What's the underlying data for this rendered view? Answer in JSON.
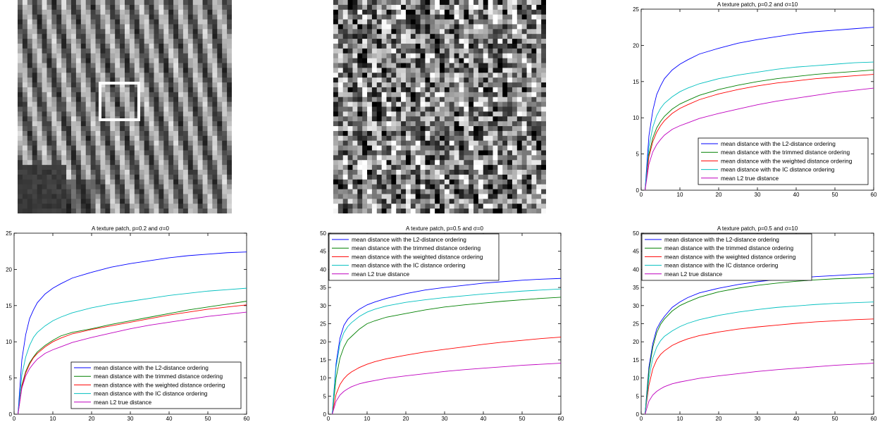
{
  "images": [
    {
      "kind": "texture-patch",
      "seed": 7,
      "highlight_box": true
    },
    {
      "kind": "noisy-patch",
      "seed": 13,
      "highlight_box": false
    }
  ],
  "series_colors": [
    "#0000ff",
    "#008000",
    "#ff0000",
    "#00bfbf",
    "#bf00bf"
  ],
  "chart_data": [
    {
      "type": "line",
      "title": "A texture patch, p=0.2 and σ=10",
      "xlim": [
        0,
        60
      ],
      "ylim": [
        0,
        25
      ],
      "xticks": [
        0,
        10,
        20,
        30,
        40,
        50,
        60
      ],
      "yticks": [
        0,
        5,
        10,
        15,
        20,
        25
      ],
      "legend_position": "lower-right",
      "x": [
        1,
        2,
        3,
        4,
        5,
        6,
        8,
        10,
        12,
        15,
        20,
        25,
        30,
        35,
        40,
        45,
        50,
        55,
        60
      ],
      "series": [
        {
          "name": "mean distance with the L2-distance ordering",
          "values": [
            0,
            7.5,
            11,
            13.2,
            14.4,
            15.4,
            16.6,
            17.4,
            18.0,
            18.8,
            19.6,
            20.3,
            20.8,
            21.2,
            21.6,
            21.9,
            22.1,
            22.3,
            22.5
          ]
        },
        {
          "name": "mean distance with the trimmed distance ordering",
          "values": [
            0,
            5.0,
            7.2,
            8.6,
            9.5,
            10.2,
            11.2,
            11.9,
            12.4,
            13.1,
            13.9,
            14.5,
            15.0,
            15.4,
            15.7,
            16.0,
            16.2,
            16.4,
            16.6
          ]
        },
        {
          "name": "mean distance with the weighted distance ordering",
          "values": [
            0,
            4.6,
            6.7,
            8.0,
            8.9,
            9.6,
            10.6,
            11.3,
            11.8,
            12.5,
            13.3,
            13.9,
            14.4,
            14.8,
            15.1,
            15.4,
            15.6,
            15.8,
            16.0
          ]
        },
        {
          "name": "mean distance with the IC distance ordering",
          "values": [
            0,
            6.0,
            8.7,
            10.3,
            11.3,
            12.0,
            12.9,
            13.6,
            14.1,
            14.7,
            15.4,
            15.9,
            16.3,
            16.7,
            17.0,
            17.2,
            17.4,
            17.6,
            17.7
          ]
        },
        {
          "name": "mean L2 true distance",
          "values": [
            0,
            3.6,
            5.3,
            6.3,
            7.0,
            7.6,
            8.4,
            8.9,
            9.3,
            9.9,
            10.6,
            11.2,
            11.8,
            12.3,
            12.7,
            13.1,
            13.5,
            13.8,
            14.1
          ]
        }
      ]
    },
    {
      "type": "line",
      "title": "A texture patch, p=0.2 and σ=0",
      "xlim": [
        0,
        60
      ],
      "ylim": [
        0,
        25
      ],
      "xticks": [
        0,
        10,
        20,
        30,
        40,
        50,
        60
      ],
      "yticks": [
        0,
        5,
        10,
        15,
        20,
        25
      ],
      "legend_position": "lower-right",
      "x": [
        1,
        2,
        3,
        4,
        5,
        6,
        8,
        10,
        12,
        15,
        20,
        25,
        30,
        35,
        40,
        45,
        50,
        55,
        60
      ],
      "series": [
        {
          "name": "mean distance with the L2-distance ordering",
          "values": [
            0,
            7.5,
            11,
            13.2,
            14.4,
            15.4,
            16.6,
            17.4,
            18.0,
            18.8,
            19.6,
            20.3,
            20.8,
            21.2,
            21.6,
            21.9,
            22.1,
            22.3,
            22.4
          ]
        },
        {
          "name": "mean distance with the trimmed distance ordering",
          "values": [
            0,
            4.0,
            5.9,
            7.1,
            7.9,
            8.6,
            9.5,
            10.2,
            10.8,
            11.3,
            11.8,
            12.4,
            12.9,
            13.4,
            13.9,
            14.4,
            14.8,
            15.2,
            15.6
          ]
        },
        {
          "name": "mean distance with the weighted distance ordering",
          "values": [
            0,
            3.8,
            5.7,
            6.9,
            7.8,
            8.4,
            9.3,
            10.0,
            10.5,
            11.1,
            11.7,
            12.2,
            12.7,
            13.2,
            13.7,
            14.1,
            14.5,
            14.8,
            15.1
          ]
        },
        {
          "name": "mean distance with the IC distance ordering",
          "values": [
            0,
            5.4,
            7.9,
            9.5,
            10.6,
            11.3,
            12.2,
            12.9,
            13.4,
            14.0,
            14.7,
            15.2,
            15.6,
            16.0,
            16.4,
            16.7,
            17.0,
            17.2,
            17.4
          ]
        },
        {
          "name": "mean L2 true distance",
          "values": [
            0,
            3.6,
            5.3,
            6.3,
            7.0,
            7.6,
            8.4,
            8.9,
            9.3,
            9.9,
            10.6,
            11.2,
            11.8,
            12.3,
            12.7,
            13.1,
            13.5,
            13.8,
            14.1
          ]
        }
      ]
    },
    {
      "type": "line",
      "title": "A texture patch, p=0.5 and σ=0",
      "xlim": [
        0,
        60
      ],
      "ylim": [
        0,
        50
      ],
      "xticks": [
        0,
        10,
        20,
        30,
        40,
        50,
        60
      ],
      "yticks": [
        0,
        5,
        10,
        15,
        20,
        25,
        30,
        35,
        40,
        45,
        50
      ],
      "legend_position": "upper-left",
      "x": [
        1,
        2,
        3,
        4,
        5,
        6,
        8,
        10,
        12,
        15,
        20,
        25,
        30,
        35,
        40,
        45,
        50,
        55,
        60
      ],
      "series": [
        {
          "name": "mean distance with the L2-distance ordering",
          "values": [
            0,
            14,
            21,
            24.5,
            26.2,
            27.3,
            29.0,
            30.2,
            31.0,
            32.0,
            33.3,
            34.3,
            35.0,
            35.6,
            36.2,
            36.6,
            37.0,
            37.3,
            37.5
          ]
        },
        {
          "name": "mean distance with the trimmed distance ordering",
          "values": [
            0,
            10,
            15.5,
            18.5,
            20.5,
            21.5,
            23.5,
            25.0,
            25.8,
            26.8,
            27.8,
            28.8,
            29.6,
            30.2,
            30.7,
            31.2,
            31.6,
            32.0,
            32.3
          ]
        },
        {
          "name": "mean distance with the weighted distance ordering",
          "values": [
            0,
            5.5,
            8.2,
            9.8,
            10.9,
            11.7,
            12.9,
            13.8,
            14.5,
            15.3,
            16.3,
            17.2,
            17.9,
            18.6,
            19.3,
            19.9,
            20.4,
            20.9,
            21.3
          ]
        },
        {
          "name": "mean distance with the IC distance ordering",
          "values": [
            0,
            13,
            19.5,
            22.5,
            24.2,
            25.3,
            27.0,
            28.2,
            29.0,
            29.9,
            30.9,
            31.6,
            32.2,
            32.7,
            33.2,
            33.6,
            34.0,
            34.3,
            34.6
          ]
        },
        {
          "name": "mean L2 true distance",
          "values": [
            0,
            3.6,
            5.3,
            6.3,
            7.0,
            7.6,
            8.4,
            8.9,
            9.3,
            9.9,
            10.6,
            11.2,
            11.8,
            12.3,
            12.7,
            13.1,
            13.5,
            13.8,
            14.1
          ]
        }
      ]
    },
    {
      "type": "line",
      "title": "A texture patch, p=0.5 and σ=10",
      "xlim": [
        0,
        60
      ],
      "ylim": [
        0,
        50
      ],
      "xticks": [
        0,
        10,
        20,
        30,
        40,
        50,
        60
      ],
      "yticks": [
        0,
        5,
        10,
        15,
        20,
        25,
        30,
        35,
        40,
        45,
        50
      ],
      "legend_position": "upper-left",
      "x": [
        1,
        2,
        3,
        4,
        5,
        6,
        8,
        10,
        12,
        15,
        20,
        25,
        30,
        35,
        40,
        45,
        50,
        55,
        60
      ],
      "series": [
        {
          "name": "mean distance with the L2-distance ordering",
          "values": [
            0,
            13,
            19.5,
            23.5,
            25.5,
            27.0,
            29.5,
            31.0,
            32.2,
            33.5,
            34.8,
            35.8,
            36.6,
            37.2,
            37.6,
            38.0,
            38.3,
            38.6,
            38.8
          ]
        },
        {
          "name": "mean distance with the trimmed distance ordering",
          "values": [
            0,
            12,
            18.5,
            22.5,
            24.8,
            26.3,
            28.5,
            30.0,
            31.0,
            32.3,
            33.8,
            34.8,
            35.6,
            36.2,
            36.7,
            37.1,
            37.4,
            37.6,
            37.8
          ]
        },
        {
          "name": "mean distance with the weighted distance ordering",
          "values": [
            0,
            8,
            12.5,
            15.0,
            16.5,
            17.5,
            19.0,
            20.0,
            20.8,
            21.7,
            22.7,
            23.5,
            24.1,
            24.6,
            25.1,
            25.5,
            25.8,
            26.1,
            26.3
          ]
        },
        {
          "name": "mean distance with the IC distance ordering",
          "values": [
            0,
            10,
            15.5,
            18.5,
            20.3,
            21.5,
            23.0,
            24.2,
            25.1,
            26.1,
            27.3,
            28.2,
            28.9,
            29.5,
            29.9,
            30.3,
            30.6,
            30.8,
            31.0
          ]
        },
        {
          "name": "mean L2 true distance",
          "values": [
            0,
            3.6,
            5.3,
            6.3,
            7.0,
            7.6,
            8.4,
            8.9,
            9.3,
            9.9,
            10.6,
            11.2,
            11.8,
            12.3,
            12.7,
            13.1,
            13.5,
            13.8,
            14.1
          ]
        }
      ]
    }
  ]
}
